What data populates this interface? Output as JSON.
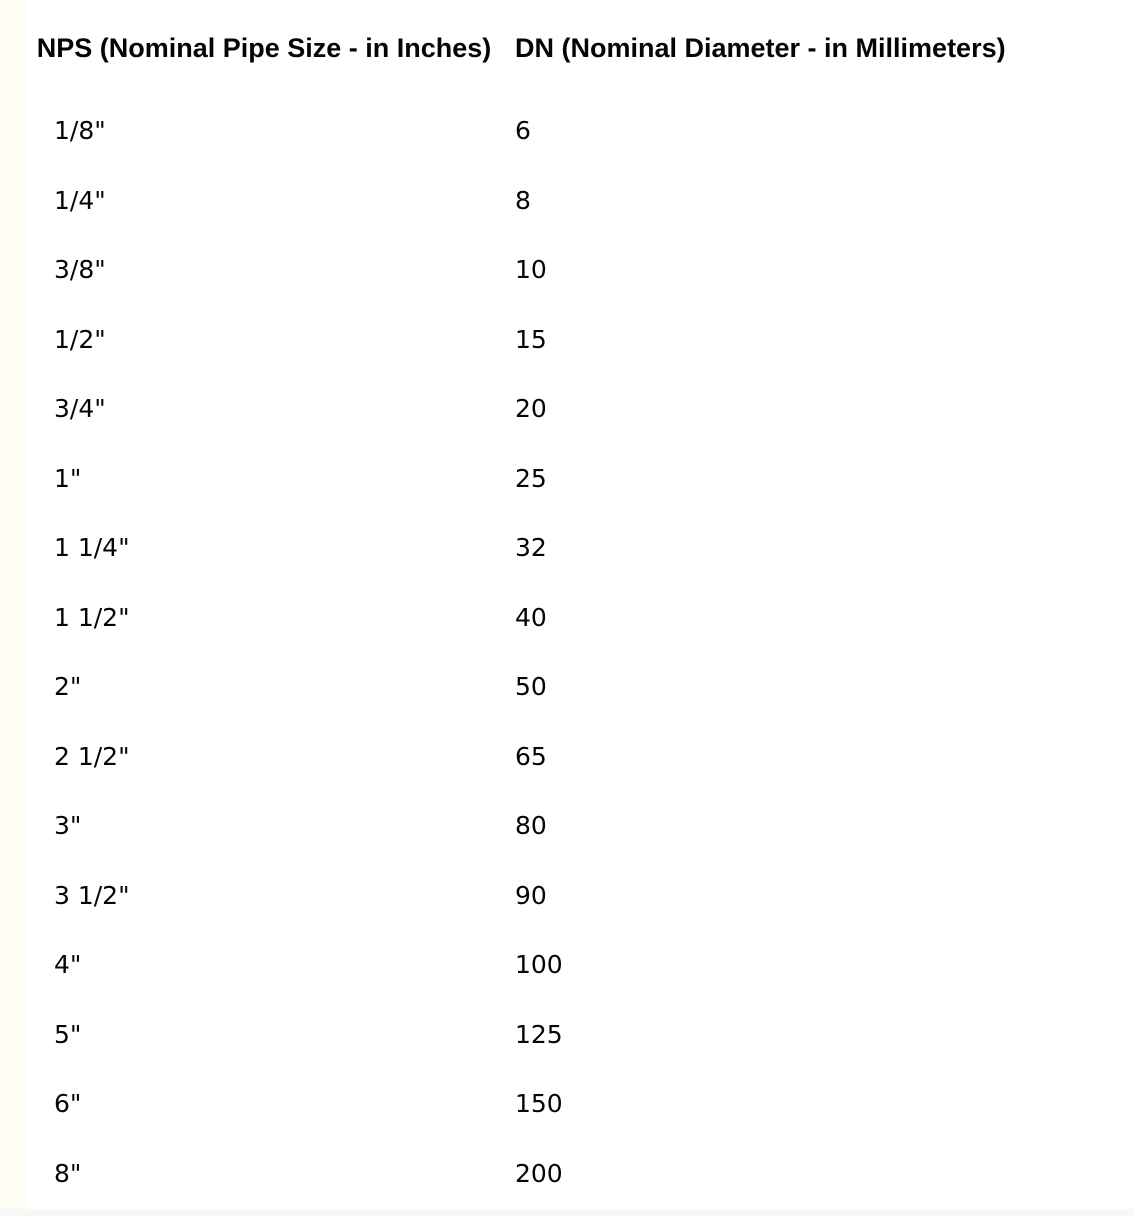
{
  "page": {
    "background_color": "#ffffff",
    "text_color": "#050505",
    "left_margin_color": "#fefcf5",
    "bottom_margin_color": "#f7f8f7"
  },
  "table": {
    "columns": [
      {
        "label": "NPS (Nominal Pipe Size - in Inches)"
      },
      {
        "label": "DN (Nominal Diameter - in Millimeters)"
      }
    ],
    "rows": [
      {
        "nps": "1/8\"",
        "dn": "6"
      },
      {
        "nps": "1/4\"",
        "dn": "8"
      },
      {
        "nps": "3/8\"",
        "dn": "10"
      },
      {
        "nps": "1/2\"",
        "dn": "15"
      },
      {
        "nps": "3/4\"",
        "dn": "20"
      },
      {
        "nps": "1\"",
        "dn": "25"
      },
      {
        "nps": "1 1/4\"",
        "dn": "32"
      },
      {
        "nps": "1 1/2\"",
        "dn": "40"
      },
      {
        "nps": "2\"",
        "dn": "50"
      },
      {
        "nps": "2 1/2\"",
        "dn": "65"
      },
      {
        "nps": "3\"",
        "dn": "80"
      },
      {
        "nps": "3 1/2\"",
        "dn": "90"
      },
      {
        "nps": "4\"",
        "dn": "100"
      },
      {
        "nps": "5\"",
        "dn": "125"
      },
      {
        "nps": "6\"",
        "dn": "150"
      },
      {
        "nps": "8\"",
        "dn": "200"
      }
    ]
  },
  "chart_data": {
    "type": "table",
    "columns": [
      "NPS (Nominal Pipe Size - in Inches)",
      "DN (Nominal Diameter - in Millimeters)"
    ],
    "rows": [
      [
        "1/8\"",
        6
      ],
      [
        "1/4\"",
        8
      ],
      [
        "3/8\"",
        10
      ],
      [
        "1/2\"",
        15
      ],
      [
        "3/4\"",
        20
      ],
      [
        "1\"",
        25
      ],
      [
        "1 1/4\"",
        32
      ],
      [
        "1 1/2\"",
        40
      ],
      [
        "2\"",
        50
      ],
      [
        "2 1/2\"",
        65
      ],
      [
        "3\"",
        80
      ],
      [
        "3 1/2\"",
        90
      ],
      [
        "4\"",
        100
      ],
      [
        "5\"",
        125
      ],
      [
        "6\"",
        150
      ],
      [
        "8\"",
        200
      ]
    ]
  }
}
